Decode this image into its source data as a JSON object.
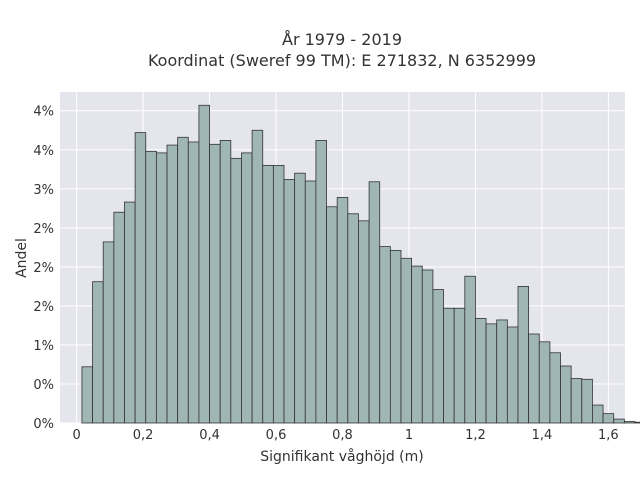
{
  "chart_data": {
    "type": "bar",
    "title_line1": "År 1979 - 2019",
    "title_line2": "Koordinat (Sweref 99 TM): E 271832, N 6352999",
    "xlabel": "Signifikant våghöjd (m)",
    "ylabel": "Andel",
    "xlim": [
      -0.05,
      1.65
    ],
    "ylim": [
      0,
      4.24
    ],
    "x_ticks": [
      0,
      0.2,
      0.4,
      0.6,
      0.8,
      1,
      1.2,
      1.4,
      1.6
    ],
    "x_tick_labels": [
      "0",
      "0,2",
      "0,4",
      "0,6",
      "0,8",
      "1",
      "1,2",
      "1,4",
      "1,6"
    ],
    "y_ticks": [
      0,
      0.5,
      1,
      1.5,
      2,
      2.5,
      3,
      3.5,
      4
    ],
    "y_tick_labels": [
      "0%",
      "0%",
      "1%",
      "2%",
      "2%",
      "2%",
      "3%",
      "4%",
      "4%"
    ],
    "bin_width": 0.032,
    "bin_edges_start": 0.016,
    "values": [
      0.72,
      1.81,
      2.32,
      2.7,
      2.83,
      3.72,
      3.48,
      3.46,
      3.56,
      3.66,
      3.6,
      4.07,
      3.57,
      3.62,
      3.39,
      3.46,
      3.75,
      3.3,
      3.3,
      3.12,
      3.2,
      3.1,
      3.62,
      2.77,
      2.89,
      2.68,
      2.59,
      3.09,
      2.26,
      2.21,
      2.11,
      2.01,
      1.96,
      1.71,
      1.47,
      1.47,
      1.88,
      1.34,
      1.27,
      1.32,
      1.23,
      1.75,
      1.14,
      1.04,
      0.9,
      0.73,
      0.57,
      0.56,
      0.23,
      0.12,
      0.05,
      0.02,
      0.01
    ],
    "grid": true,
    "colors": {
      "bar": "#9fb6b4",
      "edge": "#333333",
      "plot_bg": "#e5e5ee",
      "grid": "#ffffff"
    }
  }
}
